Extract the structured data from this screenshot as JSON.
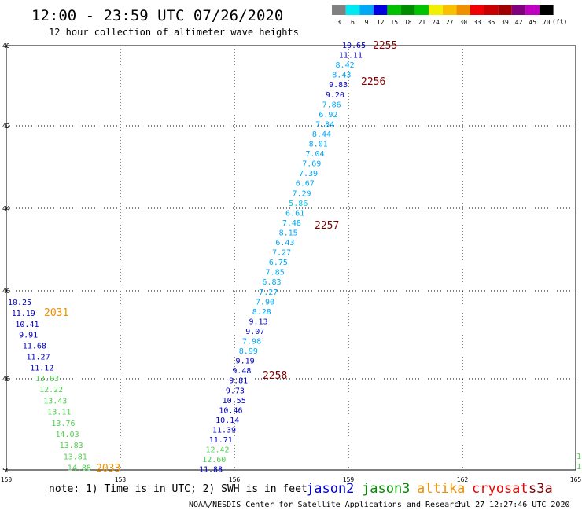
{
  "title": "12:00 - 23:59 UTC 07/26/2020",
  "subtitle": "12 hour collection of altimeter wave heights",
  "legend": {
    "labels": [
      "3",
      "6",
      "9",
      "12",
      "15",
      "18",
      "21",
      "24",
      "27",
      "30",
      "33",
      "36",
      "39",
      "42",
      "45",
      "70"
    ],
    "colors": [
      "#808080",
      "#00e8f0",
      "#00a8f8",
      "#0000e0",
      "#00c000",
      "#008c00",
      "#00c400",
      "#f0f000",
      "#f8c000",
      "#f09000",
      "#f00000",
      "#c80000",
      "#a00000",
      "#800080",
      "#c000c0",
      "#000000"
    ],
    "unit": "(ft)"
  },
  "axes": {
    "y_labels": [
      "40",
      "42",
      "44",
      "46",
      "48",
      "50"
    ],
    "x_labels": [
      "150",
      "153",
      "156",
      "159",
      "162",
      "165"
    ]
  },
  "tracks": {
    "a": {
      "color": "#0000c8",
      "values": [
        "10.25",
        "11.19",
        "10.41",
        "9.91",
        "11.68",
        "11.27",
        "11.12"
      ],
      "time": "2031",
      "time_color": "#f09000"
    },
    "b": {
      "color": "#50d050",
      "values": [
        "13.03",
        "12.22",
        "13.43",
        "13.11",
        "13.76",
        "14.03",
        "13.83",
        "13.81",
        "14.88"
      ],
      "time": "2033",
      "time_color": "#f09000"
    },
    "c": {
      "values": [
        {
          "v": "10.65",
          "c": "#0000c8"
        },
        {
          "v": "11.11",
          "c": "#0000c8"
        },
        {
          "v": "8.42",
          "c": "#00a8f8"
        },
        {
          "v": "8.43",
          "c": "#00a8f8"
        },
        {
          "v": "9.83",
          "c": "#0000c8"
        },
        {
          "v": "9.20",
          "c": "#0000c8"
        },
        {
          "v": "7.86",
          "c": "#00a8f8"
        },
        {
          "v": "6.92",
          "c": "#00a8f8"
        },
        {
          "v": "7.84",
          "c": "#00a8f8"
        },
        {
          "v": "8.44",
          "c": "#00a8f8"
        },
        {
          "v": "8.01",
          "c": "#00a8f8"
        },
        {
          "v": "7.04",
          "c": "#00a8f8"
        },
        {
          "v": "7.69",
          "c": "#00a8f8"
        },
        {
          "v": "7.39",
          "c": "#00a8f8"
        },
        {
          "v": "6.67",
          "c": "#00a8f8"
        },
        {
          "v": "7.29",
          "c": "#00a8f8"
        },
        {
          "v": "5.86",
          "c": "#00c8e8"
        },
        {
          "v": "6.61",
          "c": "#00a8f8"
        },
        {
          "v": "7.48",
          "c": "#00a8f8"
        },
        {
          "v": "8.15",
          "c": "#00a8f8"
        },
        {
          "v": "6.43",
          "c": "#00a8f8"
        },
        {
          "v": "7.27",
          "c": "#00a8f8"
        },
        {
          "v": "6.75",
          "c": "#00a8f8"
        },
        {
          "v": "7.85",
          "c": "#00a8f8"
        },
        {
          "v": "6.83",
          "c": "#00a8f8"
        },
        {
          "v": "7.27",
          "c": "#00a8f8"
        },
        {
          "v": "7.90",
          "c": "#00a8f8"
        },
        {
          "v": "8.28",
          "c": "#00a8f8"
        },
        {
          "v": "9.13",
          "c": "#0000c8"
        },
        {
          "v": "9.07",
          "c": "#0000c8"
        },
        {
          "v": "7.98",
          "c": "#00a8f8"
        },
        {
          "v": "8.99",
          "c": "#00a8f8"
        },
        {
          "v": "9.19",
          "c": "#0000c8"
        },
        {
          "v": "9.48",
          "c": "#0000c8"
        },
        {
          "v": "9.81",
          "c": "#0000c8"
        },
        {
          "v": "9.73",
          "c": "#0000c8"
        },
        {
          "v": "10.55",
          "c": "#0000c8"
        },
        {
          "v": "10.46",
          "c": "#0000c8"
        },
        {
          "v": "10.14",
          "c": "#0000c8"
        },
        {
          "v": "11.39",
          "c": "#0000c8"
        },
        {
          "v": "11.71",
          "c": "#0000c8"
        },
        {
          "v": "12.42",
          "c": "#50d050"
        },
        {
          "v": "12.60",
          "c": "#50d050"
        },
        {
          "v": "11.88",
          "c": "#0000c8"
        }
      ],
      "times": [
        "2255",
        "2256",
        "2257",
        "2258"
      ],
      "time_color": "#800000"
    },
    "edge": {
      "values": [
        "1",
        "1"
      ],
      "color": "#50d050"
    }
  },
  "footer": {
    "note": "note: 1) Time is in UTC; 2) SWH is in feet",
    "satellites": [
      {
        "name": "jason2",
        "color": "#0000e0"
      },
      {
        "name": "jason3",
        "color": "#008c00"
      },
      {
        "name": "altika",
        "color": "#f09000"
      },
      {
        "name": "cryosat",
        "color": "#f00000"
      },
      {
        "name": "s3a",
        "color": "#800000"
      }
    ],
    "credit": "NOAA/NESDIS Center for Satellite Applications and Research",
    "stamp": "Jul 27 12:27:46 UTC 2020"
  }
}
